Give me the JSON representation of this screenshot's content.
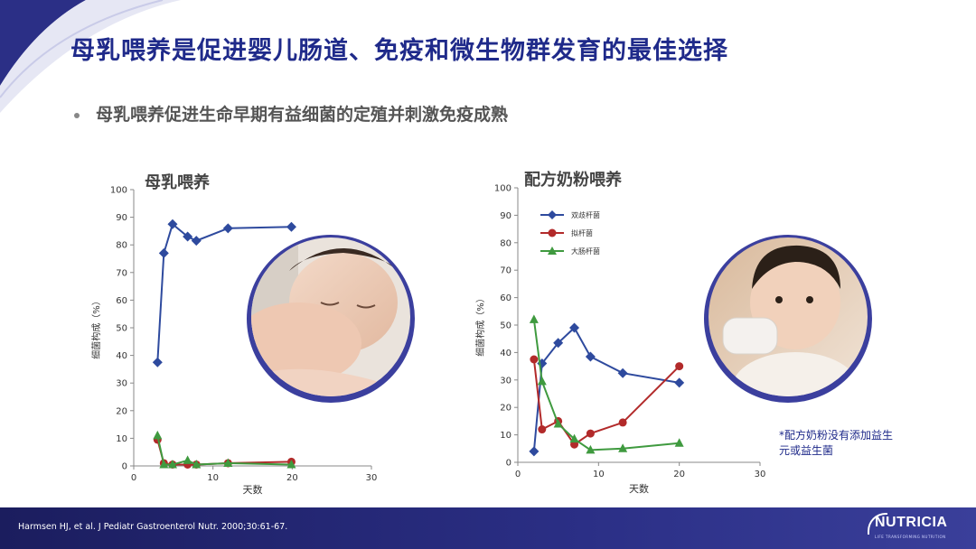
{
  "slide": {
    "title": "母乳喂养是促进婴儿肠道、免疫和微生物群发育的最佳选择",
    "bullet": "母乳喂养促进生命早期有益细菌的定殖并刺激免疫成熟",
    "note_line1": "*配方奶粉没有添加益生",
    "note_line2": "元或益生菌",
    "reference": "Harmsen HJ, et al. J Pediatr Gastroenterol Nutr. 2000;30:61-67.",
    "logo_text": "NUTRICIA",
    "logo_tagline": "LIFE TRANSFORMING NUTRITION"
  },
  "colors": {
    "title": "#1f2a8a",
    "bifido": "#2e4a9e",
    "bacteroides": "#b22a2a",
    "ecoli": "#3f9a3f",
    "footer": "#2b2f86"
  },
  "chart_data": [
    {
      "type": "line",
      "title": "母乳喂养",
      "xlabel": "天数",
      "ylabel": "细菌构成（%）",
      "xlim": [
        0,
        30
      ],
      "ylim": [
        0,
        100
      ],
      "xticks": [
        0,
        10,
        20,
        30
      ],
      "yticks": [
        0,
        10,
        20,
        30,
        40,
        50,
        60,
        70,
        80,
        90,
        100
      ],
      "legend": false,
      "series": [
        {
          "key": "bifido",
          "x": [
            3,
            3.8,
            4.9,
            6.8,
            7.9,
            11.9,
            19.9
          ],
          "y": [
            37.5,
            77,
            87.5,
            83,
            81.5,
            86,
            86.5
          ],
          "marker": "diamond"
        },
        {
          "key": "bacteroides",
          "x": [
            3,
            3.8,
            4.9,
            6.8,
            7.9,
            11.9,
            19.9
          ],
          "y": [
            9.5,
            1,
            0.5,
            0.5,
            0.5,
            1,
            1.5
          ],
          "marker": "circle"
        },
        {
          "key": "ecoli",
          "x": [
            3,
            3.8,
            4.9,
            6.8,
            7.9,
            11.9,
            19.9
          ],
          "y": [
            11,
            0.5,
            0.5,
            2,
            0.5,
            1,
            0.5
          ],
          "marker": "triangle"
        }
      ]
    },
    {
      "type": "line",
      "title": "配方奶粉喂养",
      "xlabel": "天数",
      "ylabel": "细菌构成（%）",
      "xlim": [
        0,
        30
      ],
      "ylim": [
        0,
        100
      ],
      "xticks": [
        0,
        10,
        20,
        30
      ],
      "yticks": [
        0,
        10,
        20,
        30,
        40,
        50,
        60,
        70,
        80,
        90,
        100
      ],
      "legend": "top-left",
      "series": [
        {
          "key": "bifido",
          "name": "双歧杆菌",
          "x": [
            2,
            3,
            5,
            7,
            9,
            13,
            20
          ],
          "y": [
            4,
            36,
            43.5,
            49,
            38.5,
            32.5,
            29
          ],
          "marker": "diamond"
        },
        {
          "key": "bacteroides",
          "name": "拟杆菌",
          "x": [
            2,
            3,
            5,
            7,
            9,
            13,
            20
          ],
          "y": [
            37.5,
            12,
            15,
            6.5,
            10.5,
            14.5,
            35
          ],
          "marker": "circle"
        },
        {
          "key": "ecoli",
          "name": "大肠杆菌",
          "x": [
            2,
            3,
            5,
            7,
            9,
            13,
            20
          ],
          "y": [
            52,
            29.5,
            14,
            8.5,
            4.5,
            5,
            7
          ],
          "marker": "triangle"
        }
      ]
    }
  ]
}
